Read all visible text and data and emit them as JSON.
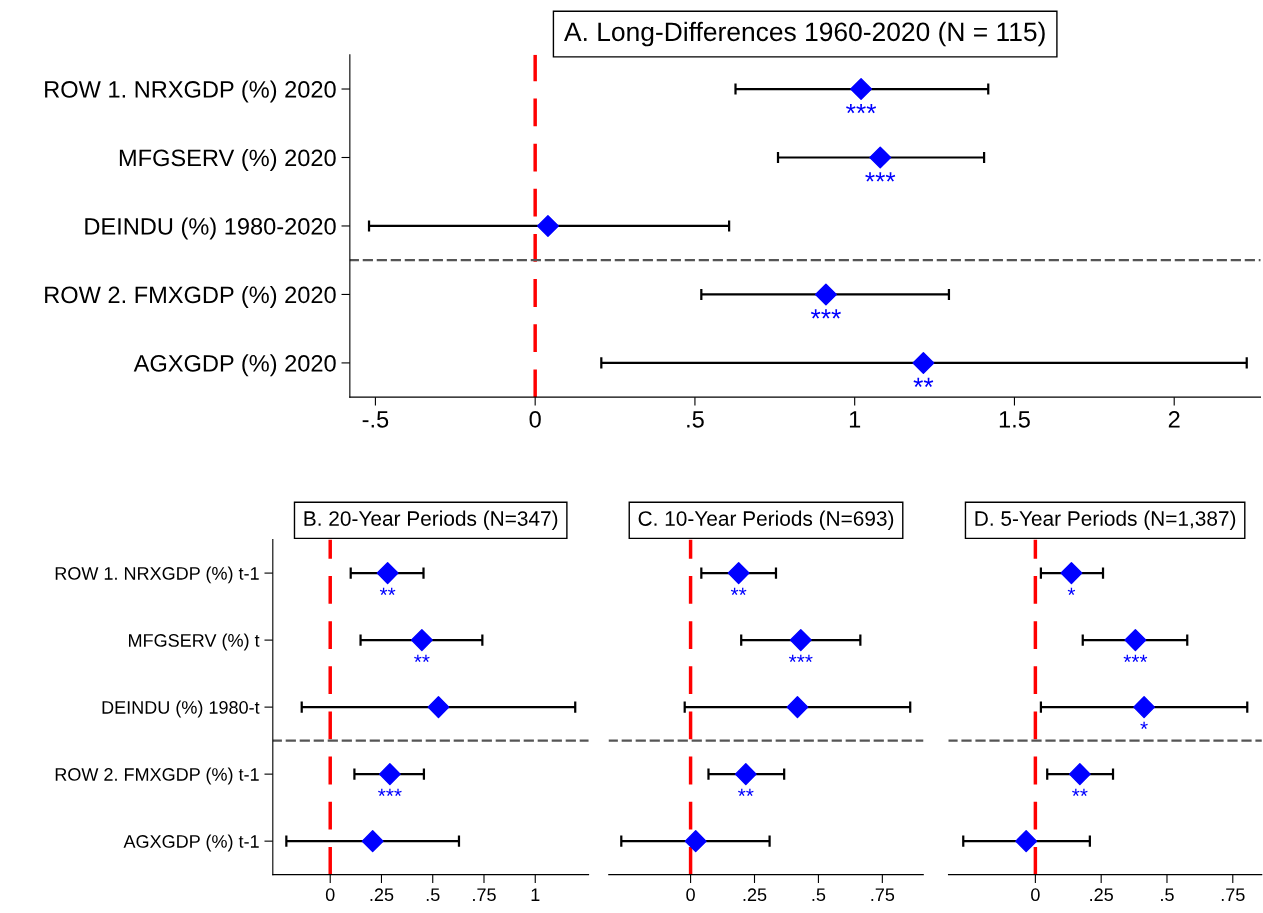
{
  "chart_data": [
    {
      "type": "scatter",
      "orientation": "horizontal",
      "title": "A. Long-Differences 1960-2020 (N = 115)",
      "categories": [
        "ROW 1. NRXGDP (%) 2020",
        "MFGSERV (%) 2020",
        "DEINDU (%) 1980-2020",
        "ROW 2. FMXGDP (%) 2020",
        "AGXGDP (%) 2020"
      ],
      "series": [
        {
          "color": "#0000ff",
          "values": [
            1.02,
            1.08,
            0.04,
            0.91,
            1.215
          ],
          "errors": [
            [
              0.627,
              1.418
            ],
            [
              0.76,
              1.405
            ],
            [
              -0.52,
              0.607
            ],
            [
              0.52,
              1.295
            ],
            [
              0.207,
              2.227
            ]
          ]
        }
      ],
      "marker": "diamond",
      "xlim": [
        -0.58,
        2.27
      ],
      "xticks": [
        {
          "value": -0.5,
          "label": "-.5"
        },
        0,
        {
          "value": 0.5,
          "label": ".5"
        },
        1,
        1.5,
        2
      ],
      "grid": false,
      "legend": false,
      "ref_lines": [
        {
          "axis": "x",
          "value": 0,
          "color": "#ff0000",
          "line_style": "dashed"
        }
      ],
      "annotations": [
        {
          "text": "***",
          "x": 1.02,
          "y": "ROW 1. NRXGDP (%) 2020"
        },
        {
          "text": "***",
          "x": 1.08,
          "y": "MFGSERV (%) 2020"
        },
        {
          "text": "***",
          "x": 0.91,
          "y": "ROW 2. FMXGDP (%) 2020"
        },
        {
          "text": "**",
          "x": 1.215,
          "y": "AGXGDP (%) 2020"
        }
      ]
    },
    {
      "type": "scatter",
      "orientation": "horizontal",
      "title": "B. 20-Year Periods (N=347)",
      "categories": [
        "ROW 1. NRXGDP (%) t-1",
        "MFGSERV (%) t",
        "DEINDU (%) 1980-t",
        "ROW 2. FMXGDP (%) t-1",
        "AGXGDP (%) t-1"
      ],
      "series": [
        {
          "color": "#0000ff",
          "values": [
            0.28,
            0.447,
            0.528,
            0.291,
            0.207
          ],
          "errors": [
            [
              0.1,
              0.455
            ],
            [
              0.148,
              0.742
            ],
            [
              -0.139,
              1.195
            ],
            [
              0.118,
              0.457
            ],
            [
              -0.214,
              0.628
            ]
          ]
        }
      ],
      "marker": "diamond",
      "xlim": [
        -0.28,
        1.26
      ],
      "xticks": [
        0,
        {
          "value": 0.25,
          "label": ".25"
        },
        {
          "value": 0.5,
          "label": ".5"
        },
        {
          "value": 0.75,
          "label": ".75"
        },
        1
      ],
      "grid": false,
      "legend": false,
      "ref_lines": [
        {
          "axis": "x",
          "value": 0,
          "color": "#ff0000",
          "line_style": "dashed"
        }
      ],
      "annotations": [
        {
          "text": "**",
          "x": 0.28,
          "y": "ROW 1. NRXGDP (%) t-1"
        },
        {
          "text": "**",
          "x": 0.447,
          "y": "MFGSERV (%) t"
        },
        {
          "text": "***",
          "x": 0.291,
          "y": "ROW 2. FMXGDP (%) t-1"
        }
      ]
    },
    {
      "type": "scatter",
      "orientation": "horizontal",
      "title": "C. 10-Year Periods (N=693)",
      "categories": [
        "ROW 1. NRXGDP (%) t-1",
        "MFGSERV (%) t",
        "DEINDU (%) 1980-t",
        "ROW 2. FMXGDP (%) t-1",
        "AGXGDP (%) t-1"
      ],
      "tick_labels": "x",
      "series": [
        {
          "color": "#0000ff",
          "values": [
            0.188,
            0.431,
            0.418,
            0.216,
            0.02
          ],
          "errors": [
            [
              0.042,
              0.334
            ],
            [
              0.198,
              0.664
            ],
            [
              -0.023,
              0.859
            ],
            [
              0.07,
              0.366
            ],
            [
              -0.271,
              0.309
            ]
          ]
        }
      ],
      "marker": "diamond",
      "xlim": [
        -0.32,
        0.91
      ],
      "xticks": [
        0,
        {
          "value": 0.25,
          "label": ".25"
        },
        {
          "value": 0.5,
          "label": ".5"
        },
        {
          "value": 0.75,
          "label": ".75"
        }
      ],
      "grid": false,
      "legend": false,
      "ref_lines": [
        {
          "axis": "x",
          "value": 0,
          "color": "#ff0000",
          "line_style": "dashed"
        }
      ],
      "annotations": [
        {
          "text": "**",
          "x": 0.188,
          "y": "ROW 1. NRXGDP (%) t-1"
        },
        {
          "text": "***",
          "x": 0.431,
          "y": "MFGSERV (%) t"
        },
        {
          "text": "**",
          "x": 0.216,
          "y": "ROW 2. FMXGDP (%) t-1"
        }
      ]
    },
    {
      "type": "scatter",
      "orientation": "horizontal",
      "title": "D. 5-Year Periods (N=1,387)",
      "categories": [
        "ROW 1. NRXGDP (%) t-1",
        "MFGSERV (%) t",
        "DEINDU (%) 1980-t",
        "ROW 2. FMXGDP (%) t-1",
        "AGXGDP (%) t-1"
      ],
      "tick_labels": "x",
      "series": [
        {
          "color": "#0000ff",
          "values": [
            0.137,
            0.38,
            0.413,
            0.169,
            -0.035
          ],
          "errors": [
            [
              0.021,
              0.257
            ],
            [
              0.18,
              0.577
            ],
            [
              0.021,
              0.805
            ],
            [
              0.045,
              0.295
            ],
            [
              -0.274,
              0.207
            ]
          ]
        }
      ],
      "marker": "diamond",
      "xlim": [
        -0.33,
        0.86
      ],
      "xticks": [
        0,
        {
          "value": 0.25,
          "label": ".25"
        },
        {
          "value": 0.5,
          "label": ".5"
        },
        {
          "value": 0.75,
          "label": ".75"
        }
      ],
      "grid": false,
      "legend": false,
      "ref_lines": [
        {
          "axis": "x",
          "value": 0,
          "color": "#ff0000",
          "line_style": "dashed"
        }
      ],
      "annotations": [
        {
          "text": "*",
          "x": 0.137,
          "y": "ROW 1. NRXGDP (%) t-1"
        },
        {
          "text": "***",
          "x": 0.38,
          "y": "MFGSERV (%) t"
        },
        {
          "text": "*",
          "x": 0.413,
          "y": "DEINDU (%) 1980-t"
        },
        {
          "text": "**",
          "x": 0.169,
          "y": "ROW 2. FMXGDP (%) t-1"
        }
      ]
    }
  ]
}
